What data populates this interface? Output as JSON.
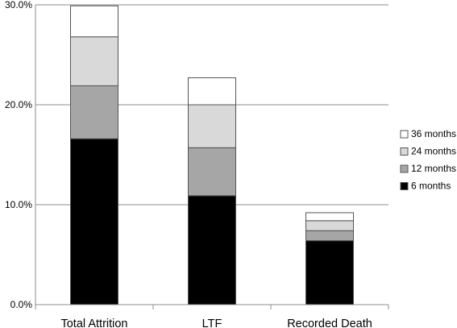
{
  "chart_data": {
    "type": "bar",
    "stacked": true,
    "categories": [
      "Total Attrition",
      "LTF",
      "Recorded Death"
    ],
    "series": [
      {
        "name": "6 months",
        "values": [
          16.6,
          10.9,
          6.4
        ],
        "color": "#000000"
      },
      {
        "name": "12 months",
        "values": [
          5.3,
          4.8,
          1.0
        ],
        "color": "#a6a6a6"
      },
      {
        "name": "24 months",
        "values": [
          4.9,
          4.3,
          1.0
        ],
        "color": "#d9d9d9"
      },
      {
        "name": "36 months",
        "values": [
          3.1,
          2.7,
          0.8
        ],
        "color": "#ffffff"
      }
    ],
    "yticks": [
      "0.0%",
      "10.0%",
      "20.0%",
      "30.0%"
    ],
    "ytick_values": [
      0,
      10,
      20,
      30
    ],
    "ylim": [
      0,
      30
    ],
    "grid": true,
    "legend_placement": "right",
    "legend_order": [
      "36 months",
      "24 months",
      "12 months",
      "6 months"
    ],
    "title": "",
    "xlabel": "",
    "ylabel": ""
  }
}
